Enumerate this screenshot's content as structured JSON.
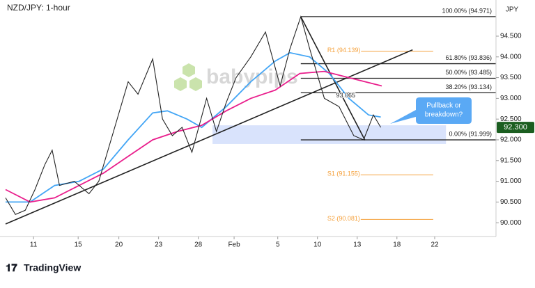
{
  "chart_data": {
    "type": "line",
    "title": "NZD/JPY: 1-hour",
    "currency": "JPY",
    "watermark": "babypips",
    "footer": "TradingView",
    "xlim": [
      0,
      100
    ],
    "xticks": [
      {
        "value": 5.7,
        "label": "11"
      },
      {
        "value": 14.8,
        "label": "15"
      },
      {
        "value": 23.1,
        "label": "20"
      },
      {
        "value": 31.2,
        "label": "23"
      },
      {
        "value": 39.3,
        "label": "28"
      },
      {
        "value": 46.6,
        "label": "Feb"
      },
      {
        "value": 55.5,
        "label": "5"
      },
      {
        "value": 63.6,
        "label": "10"
      },
      {
        "value": 71.7,
        "label": "13"
      },
      {
        "value": 79.8,
        "label": "18"
      },
      {
        "value": 87.5,
        "label": "22"
      }
    ],
    "ylim": [
      89.668,
      95.372
    ],
    "yticks": [
      {
        "value": 90,
        "label": "90.000"
      },
      {
        "value": 90.5,
        "label": "90.500"
      },
      {
        "value": 91,
        "label": "91.000"
      },
      {
        "value": 91.5,
        "label": "91.500"
      },
      {
        "value": 92,
        "label": "92.000"
      },
      {
        "value": 92.5,
        "label": "92.500"
      },
      {
        "value": 93,
        "label": "93.000"
      },
      {
        "value": 93.5,
        "label": "93.500"
      },
      {
        "value": 94,
        "label": "94.000"
      },
      {
        "value": 94.5,
        "label": "94.500"
      }
    ],
    "series": [
      {
        "color": "#222222",
        "x": [
          0,
          2,
          4,
          6,
          8,
          9.5,
          11,
          14,
          17,
          19,
          22,
          25,
          27,
          30,
          32,
          34,
          36,
          38,
          41,
          43,
          45,
          47,
          50,
          53,
          56,
          58,
          60.2,
          62,
          65,
          68,
          71,
          73,
          75,
          76.5
        ],
        "values": [
          90.6,
          90.2,
          90.3,
          90.8,
          91.4,
          91.75,
          90.9,
          91.0,
          90.7,
          91.0,
          92.2,
          93.4,
          93.1,
          93.95,
          92.5,
          92.1,
          92.3,
          91.7,
          93.0,
          92.2,
          92.9,
          93.5,
          94.0,
          94.6,
          93.3,
          94.2,
          94.97,
          94.2,
          93.0,
          92.8,
          92.1,
          92.0,
          92.6,
          92.3
        ]
      },
      {
        "color": "#42a5f5",
        "x": [
          0,
          5,
          10,
          15,
          20,
          25,
          30,
          33,
          37,
          40,
          45,
          50,
          55,
          58,
          62,
          66,
          70,
          74,
          76.5
        ],
        "values": [
          90.5,
          90.5,
          90.9,
          91.0,
          91.3,
          92.0,
          92.65,
          92.7,
          92.5,
          92.3,
          92.8,
          93.4,
          93.9,
          94.1,
          94.0,
          93.6,
          93.0,
          92.6,
          92.55
        ]
      },
      {
        "color": "#e91e8c",
        "x": [
          0,
          5,
          10,
          15,
          20,
          25,
          30,
          35,
          40,
          45,
          50,
          55,
          60,
          65,
          70,
          76.7
        ],
        "values": [
          90.8,
          90.5,
          90.6,
          90.9,
          91.2,
          91.6,
          92.0,
          92.2,
          92.35,
          92.7,
          93.0,
          93.2,
          93.6,
          93.65,
          93.5,
          93.3
        ]
      }
    ],
    "trendlines": [
      {
        "color": "#222222",
        "x": [
          0,
          83.0
        ],
        "values": [
          89.97,
          94.17
        ]
      },
      {
        "color": "#222222",
        "x": [
          60.2,
          73.3
        ],
        "values": [
          94.97,
          91.99
        ]
      }
    ],
    "zone": {
      "color": "#cfdcfb",
      "x": [
        42.2,
        89.8
      ],
      "values": [
        91.9,
        92.35
      ]
    },
    "fib_levels": [
      {
        "label": "100.00% (94.971)",
        "value": 94.971
      },
      {
        "label": "61.80% (93.836)",
        "value": 93.836
      },
      {
        "label": "50.00% (93.485)",
        "value": 93.485
      },
      {
        "label": "38.20% (93.134)",
        "value": 93.134
      },
      {
        "label": "0.00% (91.999)",
        "value": 91.999
      }
    ],
    "fib_start_x": 60.2,
    "pivots": [
      {
        "label": "R1 (94.139)",
        "value": 94.139
      },
      {
        "label": "S1 (91.155)",
        "value": 91.155
      },
      {
        "label": "S2 (90.081)",
        "value": 90.081
      }
    ],
    "pivot_x": [
      65.6,
      87.2
    ],
    "point_label": {
      "label": "93.065",
      "value": 93.065,
      "x": 67.4
    },
    "price_tag": {
      "label": "92.300",
      "value": 92.3,
      "color": "#1b5e20"
    },
    "callout": [
      "Pullback or",
      "breakdown?"
    ]
  }
}
